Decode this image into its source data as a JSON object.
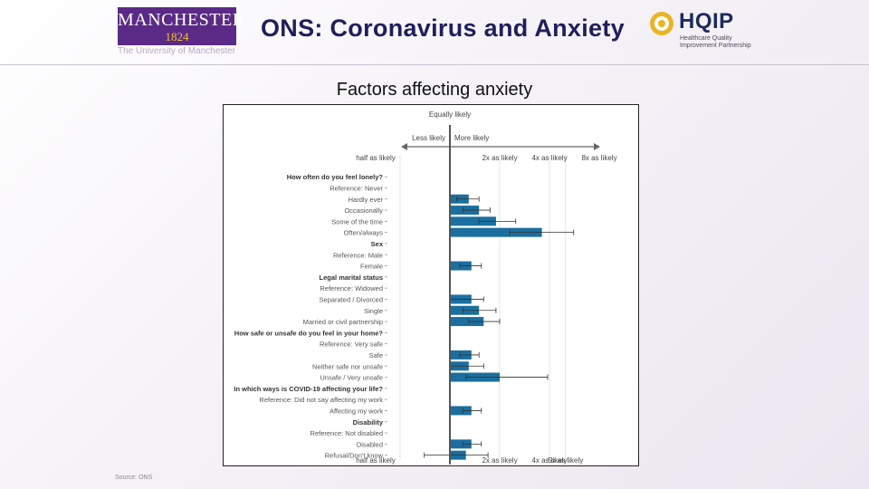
{
  "header": {
    "logo_main": "MANCHESTER",
    "logo_year": "1824",
    "logo_sub": "The University of Manchester",
    "title": "ONS: Coronavirus and Anxiety",
    "hqip_name": "HQIP",
    "hqip_sub": "Healthcare Quality Improvement Partnership"
  },
  "subtitle": "Factors affecting anxiety",
  "source": "Source: ONS",
  "colors": {
    "bar": "#1a6fa0",
    "accent_purple": "#5b2a86",
    "title": "#1f1f5c"
  },
  "chart_data": {
    "type": "bar",
    "orientation": "horizontal",
    "scale": "log2",
    "reference_value": 1,
    "top_labels": {
      "center": "Equally likely",
      "left": "Less likely",
      "right": "More likely"
    },
    "x_ticks": [
      {
        "value": 0.5,
        "label": "half as likely"
      },
      {
        "value": 2,
        "label": "2x as likely"
      },
      {
        "value": 4,
        "label": "4x as likely"
      },
      {
        "value": 5,
        "label": "5x as likely"
      }
    ],
    "top_x_ticks": [
      {
        "value": 0.5,
        "label": "half as likely"
      },
      {
        "value": 2,
        "label": "2x as likely"
      },
      {
        "value": 4,
        "label": "4x as likely"
      },
      {
        "value": 8,
        "label": "8x as likely"
      }
    ],
    "rows": [
      {
        "label": "How often do you feel lonely?",
        "header": true
      },
      {
        "label": "Reference: Never",
        "reference": true
      },
      {
        "label": "Hardly ever",
        "value": 1.3,
        "ci": [
          1.1,
          1.5
        ]
      },
      {
        "label": "Occasionally",
        "value": 1.5,
        "ci": [
          1.2,
          1.75
        ]
      },
      {
        "label": "Some of the time",
        "value": 1.9,
        "ci": [
          1.5,
          2.5
        ]
      },
      {
        "label": "Often/always",
        "value": 3.6,
        "ci": [
          2.3,
          5.6
        ]
      },
      {
        "label": "Sex",
        "header": true
      },
      {
        "label": "Reference: Male",
        "reference": true
      },
      {
        "label": "Female",
        "value": 1.35,
        "ci": [
          1.15,
          1.55
        ]
      },
      {
        "label": "Legal marital status",
        "header": true
      },
      {
        "label": "Reference: Widowed",
        "reference": true
      },
      {
        "label": "Separated / Divorced",
        "value": 1.35,
        "ci": [
          1.0,
          1.6
        ]
      },
      {
        "label": "Single",
        "value": 1.5,
        "ci": [
          1.2,
          1.9
        ]
      },
      {
        "label": "Married or civil partnership",
        "value": 1.6,
        "ci": [
          1.3,
          2.0
        ]
      },
      {
        "label": "How safe or unsafe do you feel in your home?",
        "header": true
      },
      {
        "label": "Reference: Very safe",
        "reference": true
      },
      {
        "label": "Safe",
        "value": 1.35,
        "ci": [
          1.15,
          1.5
        ]
      },
      {
        "label": "Neither safe nor unsafe",
        "value": 1.3,
        "ci": [
          1.0,
          1.6
        ]
      },
      {
        "label": "Unsafe / Very unsafe",
        "value": 2.0,
        "ci": [
          1.25,
          3.9
        ]
      },
      {
        "label": "In which ways is COVID-19 affecting your life?",
        "header": true
      },
      {
        "label": "Reference: Did not say affecting my work",
        "reference": true
      },
      {
        "label": "Affecting my work",
        "value": 1.35,
        "ci": [
          1.2,
          1.55
        ]
      },
      {
        "label": "Disability",
        "header": true
      },
      {
        "label": "Reference: Not disabled",
        "reference": true
      },
      {
        "label": "Disabled",
        "value": 1.35,
        "ci": [
          1.2,
          1.55
        ]
      },
      {
        "label": "Refusal/Don't know",
        "value": 1.25,
        "ci": [
          0.7,
          1.7
        ]
      }
    ]
  }
}
